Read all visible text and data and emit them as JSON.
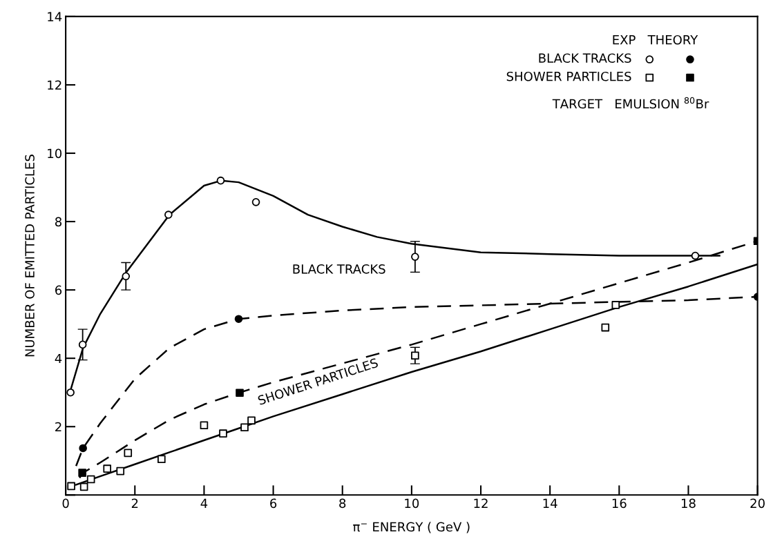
{
  "chart_data": {
    "type": "scatter",
    "xlabel": "π$^{−}$ ENERGY ( GeV )",
    "ylabel": "NUMBER OF EMITTED PARTICLES",
    "xlim": [
      0,
      20
    ],
    "ylim": [
      0,
      14
    ],
    "xticks": [
      0,
      2,
      4,
      6,
      8,
      10,
      12,
      14,
      16,
      18,
      20
    ],
    "yticks": [
      {
        "value": 0,
        "label": null
      },
      2,
      4,
      6,
      8,
      10,
      12,
      14
    ],
    "grid": false,
    "legend": "top right",
    "legend_title": "EXP   THEORY",
    "annotations": [
      "BLACK TRACKS",
      "SHOWER PARTICLES",
      "TARGET   EMULSION $^{80}$Br"
    ],
    "series": [
      {
        "type": "line",
        "color": "#000000",
        "line_style": "solid",
        "marker": "none",
        "x": [
          0.15,
          0.5,
          1,
          1.74,
          3,
          4,
          4.5,
          5,
          6,
          7,
          8,
          9,
          10,
          12,
          14,
          16,
          18,
          18.9
        ],
        "values": [
          3.1,
          4.3,
          5.3,
          6.5,
          8.2,
          9.05,
          9.2,
          9.15,
          8.75,
          8.2,
          7.85,
          7.55,
          7.35,
          7.1,
          7.05,
          7.0,
          7.0,
          7.0
        ]
      },
      {
        "type": "line",
        "color": "#000000",
        "line_style": "dashed",
        "marker": "none",
        "x": [
          0.3,
          0.5,
          1,
          2,
          3,
          4,
          5,
          6,
          8,
          10,
          14,
          18,
          20
        ],
        "values": [
          0.85,
          1.37,
          2.1,
          3.4,
          4.3,
          4.85,
          5.15,
          5.25,
          5.4,
          5.5,
          5.6,
          5.7,
          5.8
        ]
      },
      {
        "type": "line",
        "color": "#000000",
        "line_style": "dashed",
        "marker": "none",
        "x": [
          0.4,
          0.5,
          1,
          2,
          3,
          4,
          5,
          6,
          8,
          10,
          12,
          14,
          16,
          18,
          20
        ],
        "values": [
          0.5,
          0.65,
          0.95,
          1.6,
          2.2,
          2.65,
          2.99,
          3.3,
          3.85,
          4.4,
          5.0,
          5.6,
          6.2,
          6.8,
          7.43
        ]
      },
      {
        "type": "line",
        "color": "#000000",
        "line_style": "solid",
        "marker": "none",
        "x": [
          0.3,
          1,
          2,
          3,
          4,
          5,
          6,
          8,
          10,
          12,
          14,
          16,
          18,
          20
        ],
        "values": [
          0.3,
          0.55,
          0.9,
          1.25,
          1.6,
          1.95,
          2.3,
          2.95,
          3.6,
          4.2,
          4.85,
          5.5,
          6.1,
          6.75
        ]
      },
      {
        "name": "BLACK TRACKS",
        "color": "#ffffff",
        "marker": "circle",
        "x": [
          0.14,
          0.49,
          1.74,
          2.97,
          4.48,
          5.5,
          10.1,
          18.2
        ],
        "values": [
          3.0,
          4.4,
          6.4,
          8.2,
          9.2,
          8.57,
          6.97,
          7.0
        ],
        "errors": [
          null,
          0.45,
          0.4,
          null,
          null,
          null,
          0.45,
          null
        ]
      },
      {
        "color": "#000000",
        "marker": "circle",
        "x": [
          0.5,
          5.0,
          20.0
        ],
        "values": [
          1.37,
          5.15,
          5.8
        ]
      },
      {
        "name": "SHOWER PARTICLES",
        "color": "#ffffff",
        "marker": "square",
        "x": [
          0.16,
          0.53,
          0.73,
          1.2,
          1.58,
          1.8,
          2.77,
          4.0,
          4.55,
          5.17,
          5.37,
          10.1,
          15.6,
          15.9
        ],
        "values": [
          0.26,
          0.24,
          0.46,
          0.77,
          0.7,
          1.23,
          1.05,
          2.04,
          1.8,
          1.98,
          2.18,
          4.08,
          4.9,
          5.56
        ],
        "errors": [
          null,
          null,
          null,
          null,
          null,
          null,
          null,
          null,
          null,
          null,
          null,
          0.24,
          null,
          null
        ]
      },
      {
        "color": "#000000",
        "marker": "square",
        "x": [
          0.48,
          5.03,
          20.0
        ],
        "values": [
          0.65,
          2.99,
          7.43
        ]
      }
    ]
  }
}
